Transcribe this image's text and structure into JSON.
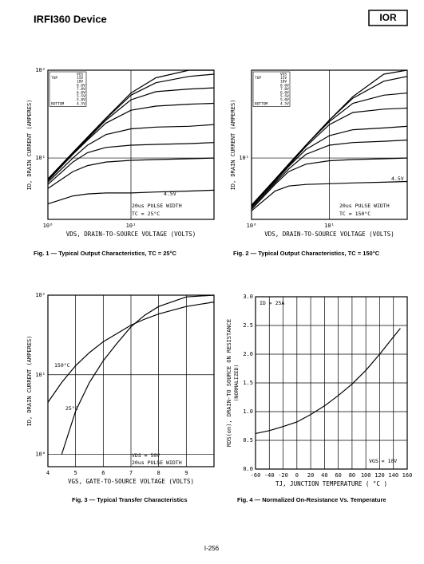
{
  "header": {
    "title": "IRFI360 Device",
    "logo": "IOR"
  },
  "footer": {
    "page": "I-256"
  },
  "chart_data": [
    {
      "type": "line",
      "title": "Fig. 1 — Typical Output Characteristics, TC = 25°C",
      "xlabel": "VDS, DRAIN-TO-SOURCE VOLTAGE (VOLTS)",
      "ylabel": "ID, DRAIN CURRENT (AMPERES)",
      "xlog": true,
      "ylog": true,
      "grid": true,
      "color": "#000000",
      "xlim": [
        1,
        100
      ],
      "ylim": [
        2,
        100
      ],
      "xticks": [
        {
          "value": 1,
          "label": "10⁰"
        },
        {
          "value": 10,
          "label": "10¹"
        }
      ],
      "yticks": [
        {
          "value": 10,
          "label": "10¹"
        },
        {
          "value": 100,
          "label": "10²"
        }
      ],
      "legend_title": "VGS",
      "legend_top": "TOP",
      "legend_bottom": "BOTTOM",
      "x": [
        1,
        2,
        3,
        5,
        10,
        20,
        50,
        100
      ],
      "series": [
        {
          "name": "15V",
          "values": [
            5.8,
            11.6,
            17.3,
            28.5,
            55,
            82,
            100,
            100
          ]
        },
        {
          "name": "10V",
          "values": [
            5.7,
            11.4,
            17,
            28,
            52,
            72,
            85,
            90
          ]
        },
        {
          "name": "8.0V",
          "values": [
            5.6,
            11.2,
            16.5,
            27,
            46,
            57,
            61,
            63
          ]
        },
        {
          "name": "7.0V",
          "values": [
            5.5,
            11,
            16,
            25,
            35,
            39,
            41,
            42
          ]
        },
        {
          "name": "6.0V",
          "values": [
            5.3,
            10,
            14,
            18.5,
            21.5,
            22.5,
            23,
            24
          ]
        },
        {
          "name": "5.5V",
          "values": [
            5.0,
            9.0,
            11.5,
            13.2,
            14,
            14.3,
            14.6,
            15
          ]
        },
        {
          "name": "5.0V",
          "values": [
            4.5,
            7.0,
            8.2,
            9.0,
            9.4,
            9.6,
            9.8,
            10
          ]
        },
        {
          "name": "4.5V",
          "values": [
            3.0,
            3.7,
            3.9,
            4.0,
            4.0,
            4.1,
            4.2,
            4.3
          ]
        }
      ],
      "annotations": [
        "4.5V",
        "20us PULSE WIDTH",
        "TC = 25°C"
      ]
    },
    {
      "type": "line",
      "title": "Fig. 2 — Typical Output Characteristics, TC = 150°C",
      "xlabel": "VDS, DRAIN-TO-SOURCE VOLTAGE (VOLTS)",
      "ylabel": "ID, DRAIN CURRENT (AMPERES)",
      "xlog": true,
      "ylog": true,
      "grid": true,
      "color": "#000000",
      "xlim": [
        1,
        100
      ],
      "ylim": [
        2,
        100
      ],
      "xticks": [
        {
          "value": 1,
          "label": "10⁰"
        },
        {
          "value": 10,
          "label": "10¹"
        }
      ],
      "yticks": [
        {
          "value": 10,
          "label": "10¹"
        }
      ],
      "legend_title": "VGS",
      "legend_top": "TOP",
      "legend_bottom": "BOTTOM",
      "x": [
        1,
        2,
        3,
        5,
        10,
        20,
        50,
        100
      ],
      "series": [
        {
          "name": "15V",
          "values": [
            2.9,
            5.7,
            8.5,
            14,
            27,
            50,
            90,
            100
          ]
        },
        {
          "name": "10V",
          "values": [
            2.9,
            5.7,
            8.5,
            14,
            27,
            48,
            75,
            85
          ]
        },
        {
          "name": "8.0V",
          "values": [
            2.8,
            5.6,
            8.3,
            14,
            26,
            42,
            52,
            55
          ]
        },
        {
          "name": "7.0V",
          "values": [
            2.8,
            5.5,
            8.2,
            13.5,
            24,
            33,
            36,
            37
          ]
        },
        {
          "name": "6.0V",
          "values": [
            2.8,
            5.4,
            8,
            12.5,
            18,
            21,
            22,
            23
          ]
        },
        {
          "name": "5.5V",
          "values": [
            2.7,
            5.2,
            7.5,
            11,
            14,
            15,
            15.5,
            16
          ]
        },
        {
          "name": "5.0V",
          "values": [
            2.6,
            5.0,
            7.0,
            8.5,
            9.3,
            9.6,
            9.8,
            10
          ]
        },
        {
          "name": "4.5V",
          "values": [
            2.5,
            4.2,
            4.8,
            5.0,
            5.1,
            5.2,
            5.3,
            5.4
          ]
        }
      ],
      "annotations": [
        "4.5V",
        "20us PULSE WIDTH",
        "TC = 150°C"
      ]
    },
    {
      "type": "line",
      "title": "Fig. 3 — Typical Transfer Characteristics",
      "xlabel": "VGS, GATE-TO-SOURCE VOLTAGE (VOLTS)",
      "ylabel": "ID, DRAIN CURRENT (AMPERES)",
      "xlog": false,
      "ylog": true,
      "grid": true,
      "color": "#000000",
      "xlim": [
        4,
        10
      ],
      "ylim": [
        0.7,
        100
      ],
      "xticks": [
        4,
        5,
        6,
        7,
        8,
        9
      ],
      "yticks": [
        {
          "value": 1,
          "label": "10⁰"
        },
        {
          "value": 10,
          "label": "10¹"
        },
        {
          "value": 100,
          "label": "10²"
        }
      ],
      "x": [
        4,
        4.5,
        5,
        5.5,
        6,
        6.5,
        7,
        7.5,
        8,
        9,
        10
      ],
      "series": [
        {
          "name": "150°C",
          "values": [
            4.5,
            8,
            13,
            19,
            26,
            33,
            42,
            50,
            58,
            72,
            82
          ]
        },
        {
          "name": "25°C",
          "values": [
            null,
            1.0,
            3.5,
            8,
            15,
            25,
            40,
            56,
            72,
            95,
            100
          ]
        }
      ],
      "annotations": [
        "VDS = 50V",
        "20us PULSE WIDTH"
      ]
    },
    {
      "type": "line",
      "title": "Fig. 4 — Normalized On-Resistance Vs. Temperature",
      "xlabel": "TJ, JUNCTION TEMPERATURE ( °C )",
      "ylabel": "RDS(on), DRAIN-TO SOURCE ON RESISTANCE",
      "ylabel2": "(NORMALIZED)",
      "xlog": false,
      "ylog": false,
      "grid": true,
      "color": "#000000",
      "xlim": [
        -60,
        160
      ],
      "ylim": [
        0,
        3
      ],
      "xticks": [
        -60,
        -40,
        -20,
        0,
        20,
        40,
        60,
        80,
        100,
        120,
        140,
        160
      ],
      "yticks": [
        {
          "value": 0,
          "label": "0.0"
        },
        0.5,
        {
          "value": 1,
          "label": "1.0"
        },
        1.5,
        {
          "value": 2,
          "label": "2.0"
        },
        2.5,
        {
          "value": 3,
          "label": "3.0"
        }
      ],
      "x": [
        -60,
        -40,
        -20,
        0,
        20,
        40,
        60,
        80,
        100,
        120,
        140,
        150
      ],
      "series": [
        {
          "name": "RDS(on)",
          "values": [
            0.62,
            0.67,
            0.74,
            0.82,
            0.95,
            1.1,
            1.28,
            1.48,
            1.72,
            2.0,
            2.3,
            2.45
          ]
        }
      ],
      "annotations": [
        "ID = 25A",
        "VGS = 10V"
      ]
    }
  ]
}
